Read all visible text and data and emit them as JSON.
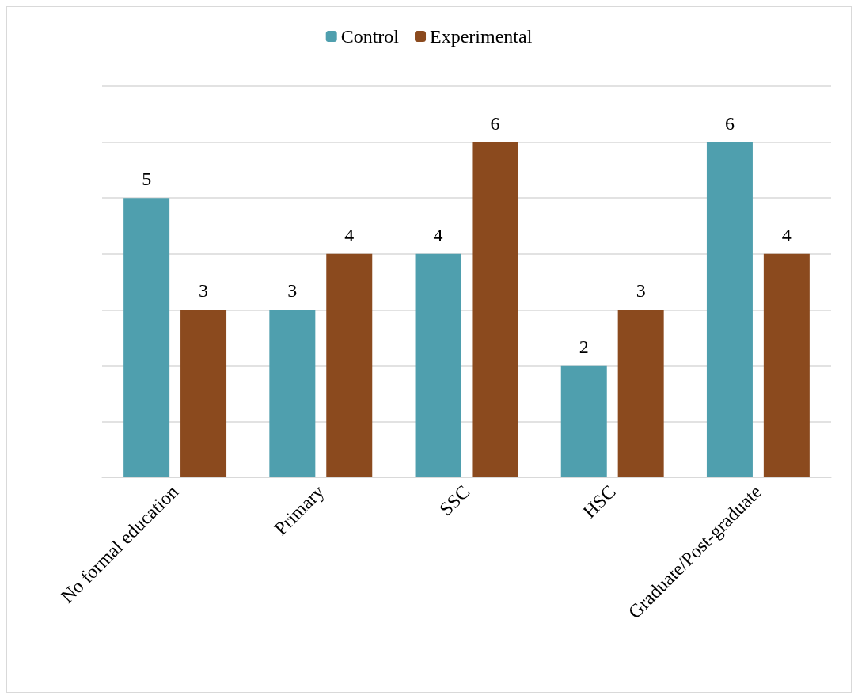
{
  "chart_data": {
    "type": "bar",
    "categories": [
      "No formal education",
      "Primary",
      "SSC",
      "HSC",
      "Graduate/Post-graduate"
    ],
    "series": [
      {
        "name": "Control",
        "color": "#4f9fae",
        "values": [
          5,
          3,
          4,
          2,
          6
        ]
      },
      {
        "name": "Experimental",
        "color": "#8b4a1e",
        "values": [
          3,
          4,
          6,
          3,
          4
        ]
      }
    ],
    "ylim": [
      0,
      7
    ],
    "yticks": [
      {
        "value": 0,
        "label": null
      },
      {
        "value": 1,
        "label": null
      },
      {
        "value": 2,
        "label": null
      },
      {
        "value": 3,
        "label": null
      },
      {
        "value": 4,
        "label": null
      },
      {
        "value": 5,
        "label": null
      },
      {
        "value": 6,
        "label": null
      },
      {
        "value": 7,
        "label": null
      }
    ],
    "grid": "y",
    "legend": "top",
    "data_labels": true,
    "tick_labels": "x"
  }
}
